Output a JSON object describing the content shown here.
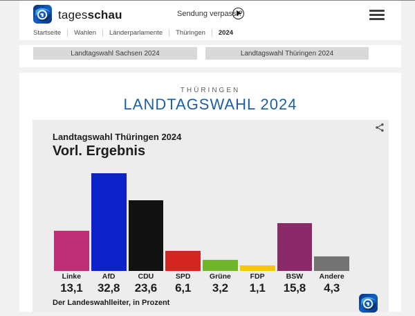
{
  "header": {
    "brand_regular": "tages",
    "brand_bold": "schau",
    "sendung_verpasst": "Sendung verpasst?",
    "breadcrumb": [
      "Startseite",
      "Wahlen",
      "Länderparlamente",
      "Thüringen",
      "2024"
    ]
  },
  "nav_buttons": [
    "Landtagswahl Sachsen 2024",
    "Landtagswahl Thüringen 2024"
  ],
  "page": {
    "eyebrow": "THÜRINGEN",
    "title": "LANDTAGSWAHL 2024",
    "title_color": "#1d5fa4"
  },
  "icons": {
    "logo": "tagesschau-globe",
    "play": "play-circle",
    "menu": "hamburger",
    "share": "share-nodes"
  },
  "chart_data": {
    "type": "bar",
    "title": "Landtagswahl Thüringen 2024",
    "subtitle": "Vorl. Ergebnis",
    "categories": [
      "Linke",
      "AfD",
      "CDU",
      "SPD",
      "Grüne",
      "FDP",
      "BSW",
      "Andere"
    ],
    "values": [
      13.1,
      32.8,
      23.6,
      6.1,
      3.2,
      1.1,
      15.8,
      4.3
    ],
    "value_labels": [
      "13,1",
      "32,8",
      "23,6",
      "6,1",
      "3,2",
      "1,1",
      "15,8",
      "4,3"
    ],
    "colors": [
      "#be3075",
      "#0d23c9",
      "#121212",
      "#d42522",
      "#70b52a",
      "#f7c900",
      "#8b2a68",
      "#737373"
    ],
    "source": "Der Landeswahlleiter, in Prozent",
    "unit": "Prozent",
    "xlabel": "",
    "ylabel": "",
    "ylim": [
      0,
      35
    ],
    "grid": false,
    "legend": false
  }
}
